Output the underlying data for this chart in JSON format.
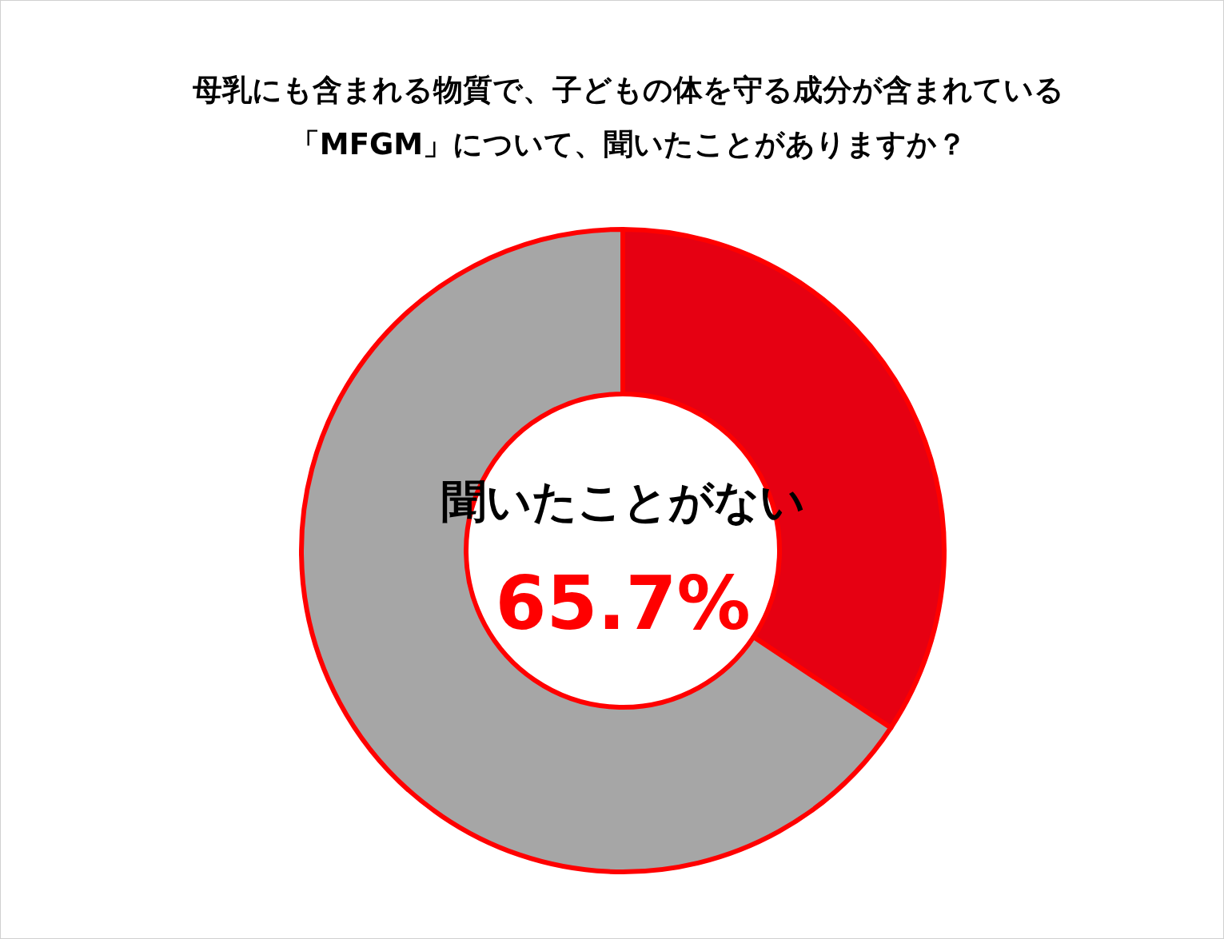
{
  "chart_data": {
    "type": "donut",
    "title": "母乳にも含まれる物質で、子どもの体を守る成分が含まれている「MFGM」について、聞いたことがありますか？",
    "categories": [
      null,
      "聞いたことがない"
    ],
    "values": [
      34.3,
      65.7
    ],
    "colors": [
      "#e60012",
      "#a6a6a6"
    ],
    "value_labels": [
      null,
      "65.7%"
    ]
  }
}
